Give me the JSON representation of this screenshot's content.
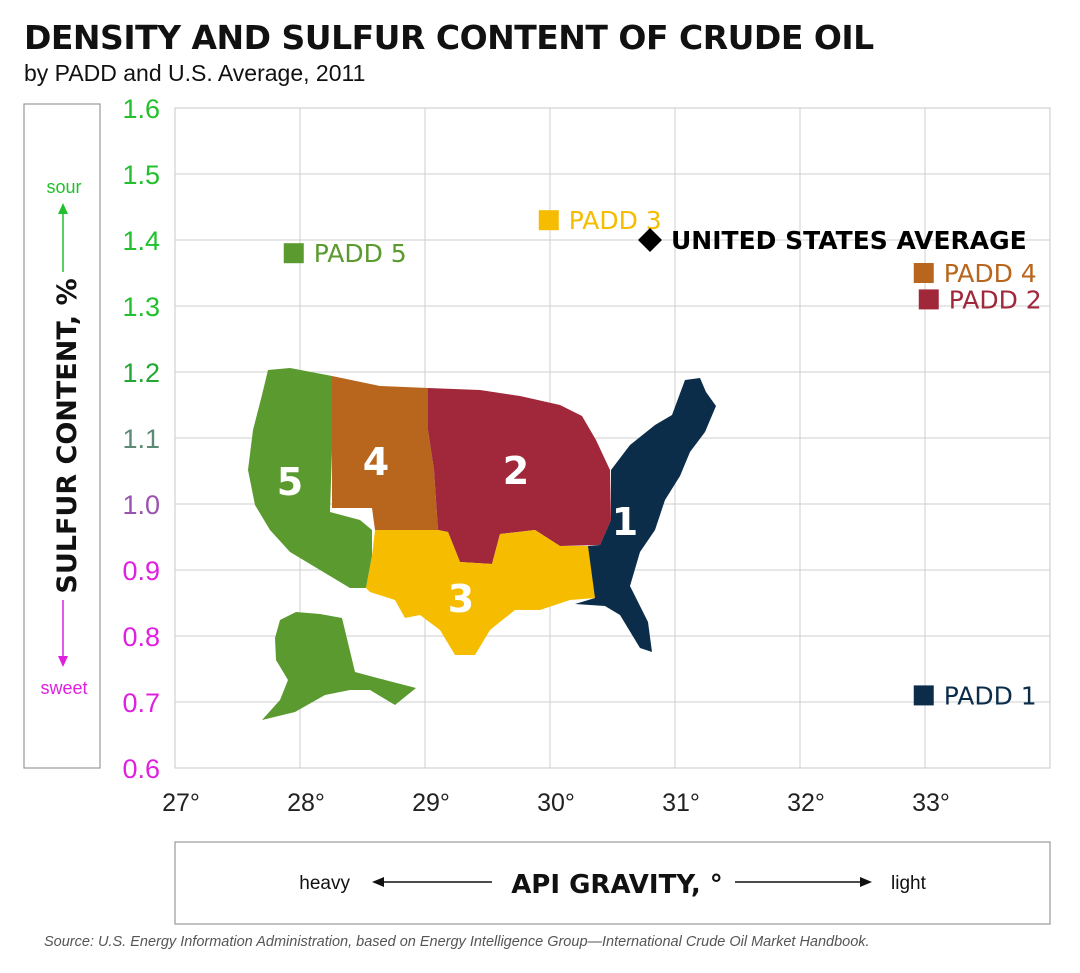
{
  "header": {
    "title": "DENSITY AND SULFUR CONTENT OF CRUDE OIL",
    "subtitle": "by PADD and U.S. Average, 2011"
  },
  "chart_data": {
    "type": "scatter",
    "xlim": [
      27,
      34
    ],
    "ylim": [
      0.6,
      1.6
    ],
    "x_ticks": [
      {
        "value": 27,
        "label": "27°"
      },
      {
        "value": 28,
        "label": "28°"
      },
      {
        "value": 29,
        "label": "29°"
      },
      {
        "value": 30,
        "label": "30°"
      },
      {
        "value": 31,
        "label": "31°"
      },
      {
        "value": 32,
        "label": "32°"
      },
      {
        "value": 33,
        "label": "33°"
      }
    ],
    "y_ticks": [
      {
        "value": 0.6,
        "label": "0.6",
        "color": "#e020e0"
      },
      {
        "value": 0.7,
        "label": "0.7",
        "color": "#e020e0"
      },
      {
        "value": 0.8,
        "label": "0.8",
        "color": "#e020e0"
      },
      {
        "value": 0.9,
        "label": "0.9",
        "color": "#e020e0"
      },
      {
        "value": 1.0,
        "label": "1.0",
        "color": "#9a52b0"
      },
      {
        "value": 1.1,
        "label": "1.1",
        "color": "#5c8a74"
      },
      {
        "value": 1.2,
        "label": "1.2",
        "color": "#22a832"
      },
      {
        "value": 1.3,
        "label": "1.3",
        "color": "#22c02e"
      },
      {
        "value": 1.4,
        "label": "1.4",
        "color": "#22c02e"
      },
      {
        "value": 1.5,
        "label": "1.5",
        "color": "#22c02e"
      },
      {
        "value": 1.6,
        "label": "1.6",
        "color": "#22c02e"
      }
    ],
    "grid": true,
    "ylabel": "SULFUR CONTENT, %",
    "y_top_label": "sour",
    "y_bottom_label": "sweet",
    "xlabel": "API GRAVITY, °",
    "x_left_label": "heavy",
    "x_right_label": "light",
    "points": [
      {
        "name": "PADD 5",
        "x": 27.95,
        "y": 1.38,
        "marker": "square",
        "color": "#5a9a2e"
      },
      {
        "name": "PADD 3",
        "x": 29.99,
        "y": 1.43,
        "marker": "square",
        "color": "#f5bc00"
      },
      {
        "name": "UNITED STATES AVERAGE",
        "x": 30.8,
        "y": 1.4,
        "marker": "diamond",
        "color": "#000000"
      },
      {
        "name": "PADD 4",
        "x": 32.99,
        "y": 1.35,
        "marker": "square",
        "color": "#b8661e"
      },
      {
        "name": "PADD 2",
        "x": 33.03,
        "y": 1.31,
        "marker": "square",
        "color": "#a0283a"
      },
      {
        "name": "PADD 1",
        "x": 32.99,
        "y": 0.71,
        "marker": "square",
        "color": "#0b2d4a"
      }
    ],
    "map_regions": [
      {
        "label": "1",
        "color": "#0b2d4a"
      },
      {
        "label": "2",
        "color": "#a0283a"
      },
      {
        "label": "3",
        "color": "#f5bc00"
      },
      {
        "label": "4",
        "color": "#b8661e"
      },
      {
        "label": "5",
        "color": "#5a9a2e"
      }
    ]
  },
  "footer": {
    "source": "Source: U.S. Energy Information Administration, based on Energy Intelligence Group—International Crude Oil Market Handbook."
  }
}
